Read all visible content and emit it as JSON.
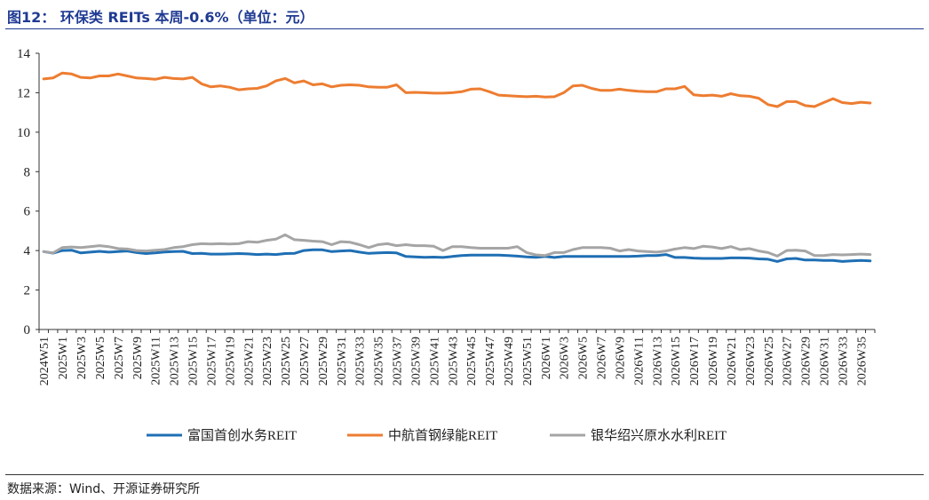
{
  "header": {
    "title": "图12：  环保类 REITs 本周-0.6%（单位：元）"
  },
  "footer": {
    "source": "数据来源：Wind、开源证券研究所"
  },
  "chart_data": {
    "type": "line",
    "title": "",
    "xlabel": "",
    "ylabel": "",
    "ylim": [
      0,
      14
    ],
    "yticks": [
      0,
      2,
      4,
      6,
      8,
      10,
      12,
      14
    ],
    "grid": false,
    "legend": "bottom",
    "x": [
      "2024W51",
      "2024W52",
      "2025W1",
      "2025W2",
      "2025W3",
      "2025W4",
      "2025W5",
      "2025W6",
      "2025W7",
      "2025W8",
      "2025W9",
      "2025W10",
      "2025W11",
      "2025W12",
      "2025W13",
      "2025W14",
      "2025W15",
      "2025W16",
      "2025W17",
      "2025W18",
      "2025W19",
      "2025W20",
      "2025W21",
      "2025W22",
      "2025W23",
      "2025W24",
      "2025W25",
      "2025W26",
      "2025W27",
      "2025W28",
      "2025W29",
      "2025W30",
      "2025W31",
      "2025W32",
      "2025W33",
      "2025W34",
      "2025W35",
      "2025W36",
      "2025W37",
      "2025W38",
      "2025W39",
      "2025W40",
      "2025W41",
      "2025W42",
      "2025W43",
      "2025W44",
      "2025W45",
      "2025W46",
      "2025W47",
      "2025W48",
      "2025W49",
      "2025W50",
      "2025W51",
      "2025W52",
      "2026W1",
      "2026W2",
      "2026W3",
      "2026W4",
      "2026W5",
      "2026W6",
      "2026W7",
      "2026W8",
      "2026W9",
      "2026W10",
      "2026W11",
      "2026W12",
      "2026W13",
      "2026W14",
      "2026W15",
      "2026W16",
      "2026W17",
      "2026W18",
      "2026W19",
      "2026W20",
      "2026W21",
      "2026W22",
      "2026W23",
      "2026W24",
      "2026W25",
      "2026W26",
      "2026W27",
      "2026W28",
      "2026W29",
      "2026W30",
      "2026W31",
      "2026W32",
      "2026W33",
      "2026W34",
      "2026W35",
      "2026W36"
    ],
    "tick_labels": [
      "2024W51",
      "2025W1",
      "2025W3",
      "2025W5",
      "2025W7",
      "2025W9",
      "2025W11",
      "2025W13",
      "2025W15",
      "2025W17",
      "2025W19",
      "2025W21",
      "2025W23",
      "2025W25",
      "2025W27",
      "2025W29",
      "2025W31",
      "2025W33",
      "2025W35",
      "2025W37",
      "2025W39",
      "2025W41",
      "2025W43",
      "2025W45",
      "2025W47",
      "2025W49",
      "2025W51",
      "2026W1",
      "2026W3",
      "2026W5",
      "2026W7",
      "2026W9",
      "2026W11",
      "2026W13",
      "2026W15",
      "2026W17",
      "2026W19",
      "2026W21",
      "2026W23",
      "2026W25",
      "2026W27",
      "2026W29",
      "2026W31",
      "2026W33",
      "2026W35"
    ],
    "series": [
      {
        "name": "富国首创水务REIT",
        "color": "#1f6fb4",
        "values": [
          3.95,
          3.87,
          4.0,
          4.02,
          3.88,
          3.92,
          3.96,
          3.92,
          3.95,
          3.98,
          3.9,
          3.85,
          3.88,
          3.93,
          3.95,
          3.96,
          3.85,
          3.86,
          3.82,
          3.82,
          3.83,
          3.85,
          3.83,
          3.8,
          3.82,
          3.8,
          3.85,
          3.86,
          4.0,
          4.04,
          4.04,
          3.95,
          3.98,
          4.0,
          3.92,
          3.86,
          3.88,
          3.9,
          3.88,
          3.7,
          3.68,
          3.66,
          3.67,
          3.65,
          3.7,
          3.75,
          3.77,
          3.77,
          3.77,
          3.77,
          3.75,
          3.72,
          3.68,
          3.66,
          3.7,
          3.65,
          3.7,
          3.7,
          3.7,
          3.7,
          3.7,
          3.7,
          3.7,
          3.7,
          3.72,
          3.75,
          3.75,
          3.8,
          3.65,
          3.65,
          3.62,
          3.6,
          3.6,
          3.6,
          3.63,
          3.63,
          3.62,
          3.58,
          3.56,
          3.45,
          3.58,
          3.6,
          3.52,
          3.52,
          3.5,
          3.5,
          3.45,
          3.48,
          3.5,
          3.48
        ]
      },
      {
        "name": "中航首钢绿能REIT",
        "color": "#ed7d31",
        "values": [
          12.7,
          12.75,
          13.0,
          12.95,
          12.78,
          12.75,
          12.85,
          12.85,
          12.95,
          12.85,
          12.75,
          12.72,
          12.68,
          12.78,
          12.72,
          12.7,
          12.78,
          12.45,
          12.3,
          12.35,
          12.28,
          12.15,
          12.2,
          12.22,
          12.35,
          12.6,
          12.72,
          12.5,
          12.6,
          12.4,
          12.45,
          12.3,
          12.38,
          12.4,
          12.38,
          12.3,
          12.28,
          12.28,
          12.4,
          12.0,
          12.02,
          12.0,
          11.98,
          11.98,
          12.0,
          12.05,
          12.18,
          12.2,
          12.05,
          11.88,
          11.85,
          11.82,
          11.8,
          11.82,
          11.78,
          11.8,
          12.0,
          12.35,
          12.38,
          12.22,
          12.12,
          12.12,
          12.18,
          12.12,
          12.08,
          12.05,
          12.05,
          12.2,
          12.2,
          12.32,
          11.9,
          11.85,
          11.88,
          11.82,
          11.95,
          11.85,
          11.82,
          11.72,
          11.4,
          11.3,
          11.55,
          11.55,
          11.35,
          11.3,
          11.5,
          11.7,
          11.5,
          11.45,
          11.52,
          11.48
        ]
      },
      {
        "name": "银华绍兴原水水利REIT",
        "color": "#a5a5a5",
        "values": [
          3.95,
          3.88,
          4.15,
          4.18,
          4.15,
          4.2,
          4.25,
          4.2,
          4.1,
          4.08,
          4.0,
          3.98,
          4.02,
          4.05,
          4.15,
          4.2,
          4.3,
          4.35,
          4.33,
          4.35,
          4.33,
          4.35,
          4.45,
          4.42,
          4.52,
          4.58,
          4.8,
          4.55,
          4.52,
          4.48,
          4.45,
          4.3,
          4.45,
          4.42,
          4.3,
          4.15,
          4.3,
          4.35,
          4.25,
          4.3,
          4.25,
          4.25,
          4.22,
          4.0,
          4.2,
          4.2,
          4.15,
          4.12,
          4.12,
          4.12,
          4.12,
          4.2,
          3.9,
          3.78,
          3.75,
          3.9,
          3.9,
          4.05,
          4.15,
          4.15,
          4.15,
          4.12,
          3.98,
          4.05,
          3.98,
          3.95,
          3.92,
          3.98,
          4.08,
          4.15,
          4.1,
          4.22,
          4.18,
          4.1,
          4.2,
          4.05,
          4.1,
          3.98,
          3.9,
          3.72,
          4.0,
          4.02,
          3.98,
          3.75,
          3.75,
          3.8,
          3.78,
          3.8,
          3.82,
          3.8
        ]
      }
    ]
  }
}
